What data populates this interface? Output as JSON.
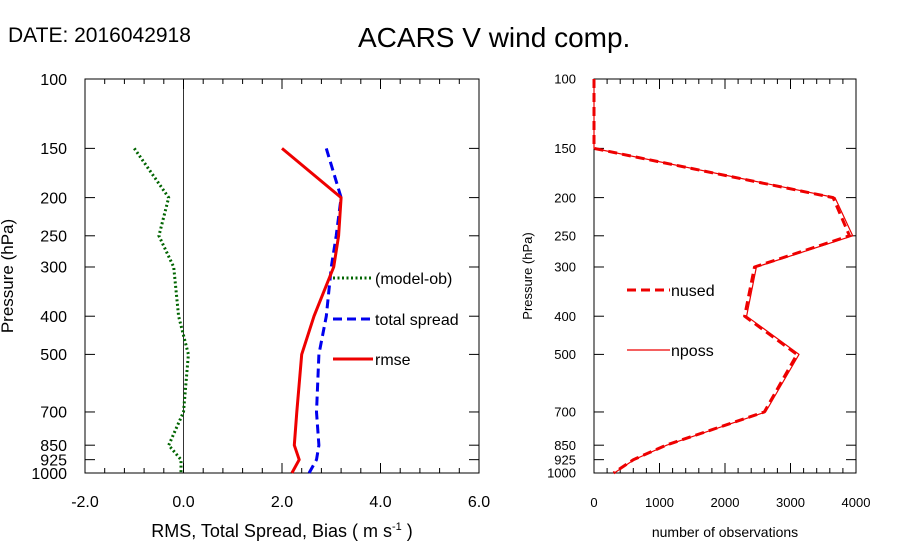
{
  "header": {
    "date_label": "DATE: 2016042918",
    "title": "ACARS V wind comp."
  },
  "chart_data": [
    {
      "type": "line",
      "title": "ACARS V wind comp.",
      "xlabel": "RMS, Total Spread, Bias ( m s",
      "xlabel_unit_exp": "-1",
      "xlabel_close": " )",
      "ylabel": "Pressure (hPa)",
      "xlim": [
        -2.0,
        6.0
      ],
      "ylim": [
        1000,
        100
      ],
      "yscale": "log",
      "x_ticks": [
        -2.0,
        0.0,
        2.0,
        4.0,
        6.0
      ],
      "x_tick_labels": [
        "-2.0",
        "0.0",
        "2.0",
        "4.0",
        "6.0"
      ],
      "y_ticks": [
        100,
        150,
        200,
        250,
        300,
        400,
        500,
        700,
        850,
        925,
        1000
      ],
      "y_tick_labels": [
        "100",
        "150",
        "200",
        "250",
        "300",
        "400",
        "500",
        "700",
        "850",
        "925",
        "1000"
      ],
      "zero_line": 0.0,
      "series": [
        {
          "name": "(model-ob)",
          "color": "#006400",
          "style": "dotted",
          "points": [
            [
              -1.0,
              150
            ],
            [
              -0.3,
              200
            ],
            [
              -0.5,
              250
            ],
            [
              -0.2,
              300
            ],
            [
              -0.1,
              400
            ],
            [
              0.1,
              500
            ],
            [
              0.0,
              700
            ],
            [
              -0.3,
              850
            ],
            [
              -0.05,
              925
            ],
            [
              -0.05,
              1000
            ]
          ]
        },
        {
          "name": "total spread",
          "color": "#0000ee",
          "style": "dashed",
          "points": [
            [
              2.9,
              150
            ],
            [
              3.2,
              200
            ],
            [
              3.1,
              250
            ],
            [
              3.0,
              300
            ],
            [
              2.9,
              400
            ],
            [
              2.75,
              500
            ],
            [
              2.7,
              700
            ],
            [
              2.75,
              850
            ],
            [
              2.7,
              925
            ],
            [
              2.55,
              1000
            ]
          ]
        },
        {
          "name": "rmse",
          "color": "#ee0000",
          "style": "solid",
          "points": [
            [
              2.0,
              150
            ],
            [
              3.2,
              200
            ],
            [
              3.15,
              250
            ],
            [
              3.05,
              300
            ],
            [
              2.65,
              400
            ],
            [
              2.4,
              500
            ],
            [
              2.3,
              700
            ],
            [
              2.25,
              850
            ],
            [
              2.35,
              925
            ],
            [
              2.2,
              1000
            ]
          ]
        }
      ],
      "legend": {
        "position": "right-middle"
      }
    },
    {
      "type": "line",
      "xlabel": "number of observations",
      "ylabel": "Pressure (hPa)",
      "xlim": [
        0,
        4000
      ],
      "ylim": [
        1000,
        100
      ],
      "yscale": "log",
      "x_ticks": [
        0,
        1000,
        2000,
        3000,
        4000
      ],
      "x_tick_labels": [
        "0",
        "1000",
        "2000",
        "3000",
        "4000"
      ],
      "y_ticks": [
        100,
        150,
        200,
        250,
        300,
        400,
        500,
        700,
        850,
        925,
        1000
      ],
      "y_tick_labels": [
        "100",
        "150",
        "200",
        "250",
        "300",
        "400",
        "500",
        "700",
        "850",
        "925",
        "1000"
      ],
      "series": [
        {
          "name": "nused",
          "color": "#ee0000",
          "style": "dashed",
          "points": [
            [
              0,
              100
            ],
            [
              0,
              150
            ],
            [
              3650,
              200
            ],
            [
              3900,
              250
            ],
            [
              2450,
              300
            ],
            [
              2300,
              400
            ],
            [
              3100,
              500
            ],
            [
              2600,
              700
            ],
            [
              1100,
              850
            ],
            [
              600,
              925
            ],
            [
              300,
              1000
            ]
          ]
        },
        {
          "name": "nposs",
          "color": "#ee0000",
          "style": "thin",
          "points": [
            [
              0,
              100
            ],
            [
              0,
              150
            ],
            [
              3680,
              200
            ],
            [
              3950,
              250
            ],
            [
              2480,
              300
            ],
            [
              2330,
              400
            ],
            [
              3130,
              500
            ],
            [
              2620,
              700
            ],
            [
              1110,
              850
            ],
            [
              610,
              925
            ],
            [
              310,
              1000
            ]
          ]
        }
      ],
      "legend": {
        "position": "left-middle"
      }
    }
  ]
}
